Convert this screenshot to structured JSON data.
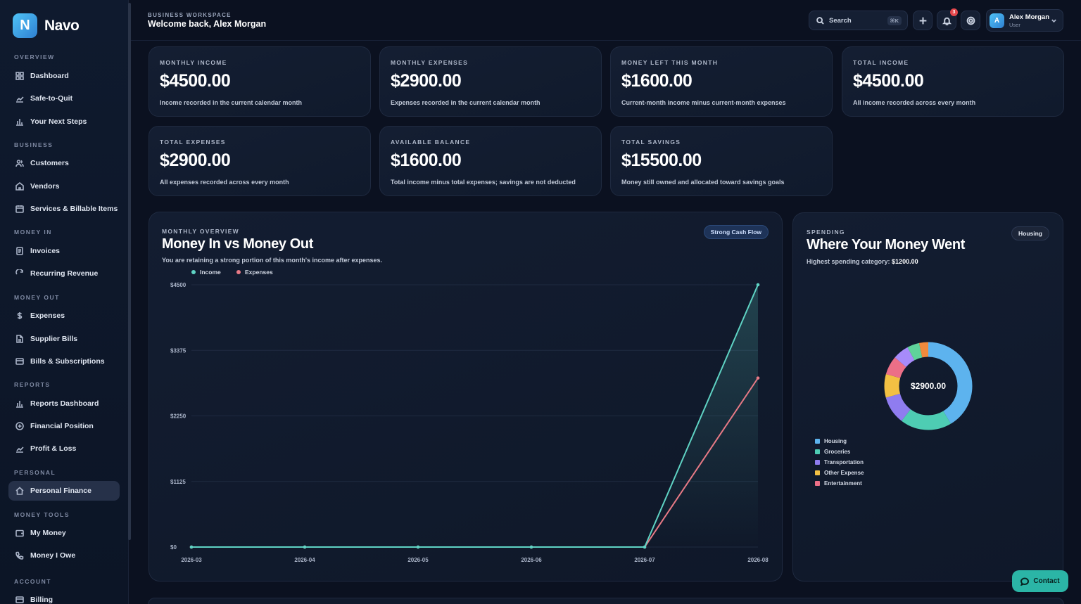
{
  "brand": {
    "logo_letter": "N",
    "name": "Navo"
  },
  "sidebar": {
    "sections": {
      "overview": "OVERVIEW",
      "business": "BUSINESS",
      "money_in": "MONEY IN",
      "money_out": "MONEY OUT",
      "reports": "REPORTS",
      "personal": "PERSONAL",
      "money_tools": "MONEY TOOLS",
      "account": "ACCOUNT"
    },
    "items": [
      {
        "label": "Dashboard",
        "icon": "grid-icon"
      },
      {
        "label": "Safe-to-Quit",
        "icon": "trend-icon"
      },
      {
        "label": "Your Next Steps",
        "icon": "bar-chart-icon"
      },
      {
        "label": "Customers",
        "icon": "users-icon"
      },
      {
        "label": "Vendors",
        "icon": "store-icon"
      },
      {
        "label": "Services & Billable Items",
        "icon": "calendar-icon"
      },
      {
        "label": "Invoices",
        "icon": "document-icon"
      },
      {
        "label": "Recurring Revenue",
        "icon": "refresh-icon"
      },
      {
        "label": "Expenses",
        "icon": "dollar-icon"
      },
      {
        "label": "Supplier Bills",
        "icon": "file-icon"
      },
      {
        "label": "Bills & Subscriptions",
        "icon": "card-icon"
      },
      {
        "label": "Reports Dashboard",
        "icon": "bar-chart-icon"
      },
      {
        "label": "Financial Position",
        "icon": "circle-plus-icon"
      },
      {
        "label": "Profit & Loss",
        "icon": "trend-icon"
      },
      {
        "label": "Personal Finance",
        "icon": "home-icon",
        "active": true
      },
      {
        "label": "My Money",
        "icon": "wallet-icon"
      },
      {
        "label": "Money I Owe",
        "icon": "phone-icon"
      },
      {
        "label": "Billing",
        "icon": "card-icon"
      }
    ]
  },
  "header": {
    "workspace_label": "BUSINESS WORKSPACE",
    "welcome": "Welcome back, Alex Morgan",
    "search_placeholder": "Search",
    "search_shortcut": "⌘K",
    "notification_count": "3",
    "user_initial": "A",
    "user_name": "Alex Morgan",
    "user_role": "User"
  },
  "stats": [
    {
      "label": "MONTHLY INCOME",
      "value": "$4500.00",
      "desc": "Income recorded in the current calendar month"
    },
    {
      "label": "MONTHLY EXPENSES",
      "value": "$2900.00",
      "desc": "Expenses recorded in the current calendar month"
    },
    {
      "label": "MONEY LEFT THIS MONTH",
      "value": "$1600.00",
      "desc": "Current-month income minus current-month expenses"
    },
    {
      "label": "TOTAL INCOME",
      "value": "$4500.00",
      "desc": "All income recorded across every month"
    },
    {
      "label": "TOTAL EXPENSES",
      "value": "$2900.00",
      "desc": "All expenses recorded across every month"
    },
    {
      "label": "AVAILABLE BALANCE",
      "value": "$1600.00",
      "desc": "Total income minus total expenses; savings are not deducted"
    },
    {
      "label": "TOTAL SAVINGS",
      "value": "$15500.00",
      "desc": "Money still owned and allocated toward savings goals"
    }
  ],
  "overview": {
    "label": "MONTHLY OVERVIEW",
    "title": "Money In vs Money Out",
    "subtitle": "You are retaining a strong portion of this month's income after expenses.",
    "badge": "Strong Cash Flow"
  },
  "spending": {
    "label": "SPENDING",
    "title": "Where Your Money Went",
    "subtitle_prefix": "Highest spending category:",
    "subtitle_value": "$1200.00",
    "badge": "Housing",
    "center_total": "$2900.00"
  },
  "contact_label": "Contact",
  "chart_data": [
    {
      "type": "line",
      "x": [
        "2026-03",
        "2026-04",
        "2026-05",
        "2026-06",
        "2026-07",
        "2026-08"
      ],
      "series": [
        {
          "name": "Income",
          "values": [
            0,
            0,
            0,
            0,
            0,
            4500
          ],
          "color": "#5fd3c4"
        },
        {
          "name": "Expenses",
          "values": [
            0,
            0,
            0,
            0,
            0,
            2900
          ],
          "color": "#e87a86"
        }
      ],
      "yticks": [
        "$0",
        "$1125",
        "$2250",
        "$3375",
        "$4500"
      ],
      "ylim": [
        0,
        4500
      ],
      "legend": "top-left",
      "grid": true
    },
    {
      "type": "pie",
      "donut": true,
      "legend": "bottom-left",
      "slices": [
        {
          "name": "Housing",
          "value": 1200,
          "color": "#5db3ee"
        },
        {
          "name": "Groceries",
          "value": 550,
          "color": "#4ecdb3"
        },
        {
          "name": "Transportation",
          "value": 300,
          "color": "#8f7cf0"
        },
        {
          "name": "Other Expense",
          "value": 250,
          "color": "#f2c043"
        },
        {
          "name": "Entertainment",
          "value": 200,
          "color": "#ec6f87"
        },
        {
          "name": "",
          "value": 170,
          "color": "#a78bfa"
        },
        {
          "name": "",
          "value": 130,
          "color": "#5fd39a"
        },
        {
          "name": "",
          "value": 100,
          "color": "#f08a3c"
        }
      ]
    }
  ]
}
